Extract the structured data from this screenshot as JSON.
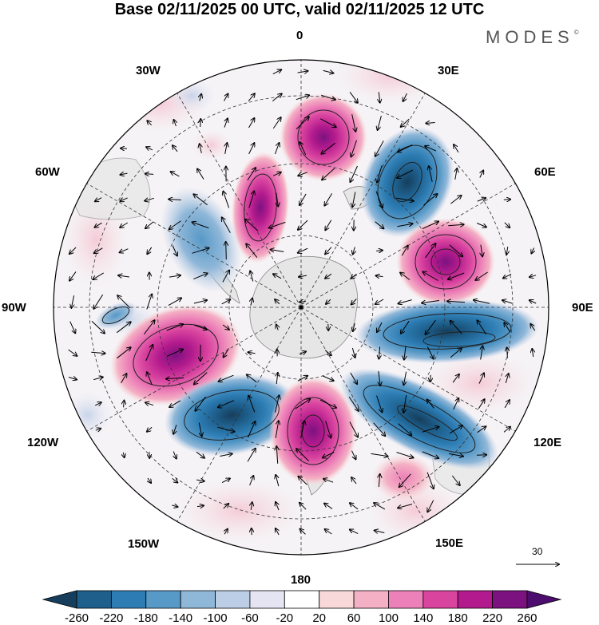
{
  "title": "Base 02/11/2025 00 UTC, valid 02/11/2025 12 UTC",
  "brand": "MODES",
  "brand_mark": "©",
  "longitude_labels": {
    "lon_0": "0",
    "lon_30e": "30E",
    "lon_60e": "60E",
    "lon_90e": "90E",
    "lon_120e": "120E",
    "lon_150e": "150E",
    "lon_180": "180",
    "lon_150w": "150W",
    "lon_120w": "120W",
    "lon_90w": "90W",
    "lon_60w": "60W",
    "lon_30w": "30W"
  },
  "reference_vector": "30",
  "colorbar": {
    "labels": [
      "-260",
      "-220",
      "-180",
      "-140",
      "-100",
      "-60",
      "-20",
      "20",
      "60",
      "100",
      "140",
      "180",
      "220",
      "260"
    ],
    "colors": [
      "#163e5c",
      "#1e5f8c",
      "#2d7db4",
      "#5799c7",
      "#8fb7d8",
      "#bccde6",
      "#e4e4f2",
      "#ffffff",
      "#f8d8d8",
      "#f4b0c4",
      "#ec80b8",
      "#d9449f",
      "#b21a8d",
      "#7c1280",
      "#4c0d6e"
    ]
  },
  "colors": {
    "land": "#e6e6e6",
    "coast": "#888888",
    "grid": "#333333"
  },
  "anomaly_centers": [
    {
      "id": "pos-near-0",
      "value": 180
    },
    {
      "id": "neg-40e",
      "value": -260
    },
    {
      "id": "pos-60e-outer",
      "value": 260
    },
    {
      "id": "pos-near-30w",
      "value": 220
    },
    {
      "id": "neg-near-60w",
      "value": -140
    },
    {
      "id": "neg-90e-band",
      "value": -220
    },
    {
      "id": "pos-110w",
      "value": 180
    },
    {
      "id": "neg-150w",
      "value": -220
    },
    {
      "id": "pos-near-180",
      "value": 260
    },
    {
      "id": "neg-120e-band",
      "value": -260
    },
    {
      "id": "pos-150e",
      "value": 100
    }
  ]
}
